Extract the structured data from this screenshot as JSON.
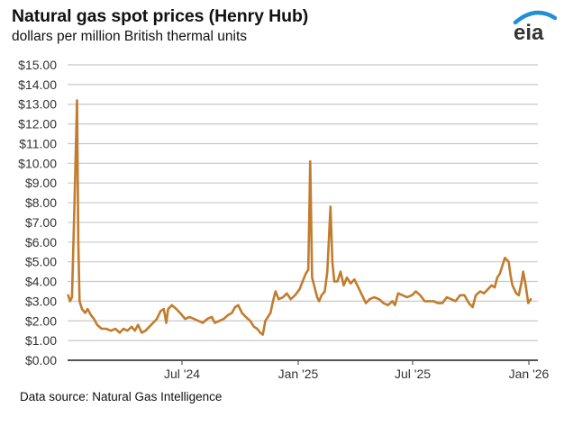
{
  "header": {
    "title": "Natural gas spot prices (Henry Hub)",
    "subtitle": "dollars per million British thermal units",
    "logo_text": "eia"
  },
  "footer": {
    "source": "Data source: Natural Gas Intelligence"
  },
  "colors": {
    "series": "#c27c2e",
    "grid": "#c8c8c8",
    "axis": "#555555",
    "logo_arc": "#1f8fd6",
    "logo_text": "#333333"
  },
  "chart_data": {
    "type": "line",
    "title": "Natural gas spot prices (Henry Hub)",
    "subtitle": "dollars per million British thermal units",
    "xlabel": "",
    "ylabel": "dollars per million British thermal units",
    "ylim": [
      0,
      15
    ],
    "yticks": [
      0,
      1,
      2,
      3,
      4,
      5,
      6,
      7,
      8,
      9,
      10,
      11,
      12,
      13,
      14,
      15
    ],
    "ytick_labels": [
      "$0.00",
      "$1.00",
      "$2.00",
      "$3.00",
      "$4.00",
      "$5.00",
      "$6.00",
      "$7.00",
      "$8.00",
      "$9.00",
      "$10.00",
      "$11.00",
      "$12.00",
      "$13.00",
      "$14.00",
      "$15.00"
    ],
    "xlim": [
      "2024-01-01",
      "2026-01-14"
    ],
    "xticks": [
      "2024-07-01",
      "2025-01-01",
      "2025-07-01",
      "2026-01-01"
    ],
    "xtick_labels": [
      "Jul '24",
      "Jan '25",
      "Jul '25",
      "Jan '26"
    ],
    "grid": true,
    "legend": null,
    "series": [
      {
        "name": "Henry Hub spot price",
        "points": [
          [
            "2024-01-02",
            3.3
          ],
          [
            "2024-01-05",
            3.0
          ],
          [
            "2024-01-08",
            3.2
          ],
          [
            "2024-01-12",
            8.0
          ],
          [
            "2024-01-16",
            13.2
          ],
          [
            "2024-01-18",
            6.0
          ],
          [
            "2024-01-20",
            3.0
          ],
          [
            "2024-01-24",
            2.6
          ],
          [
            "2024-01-29",
            2.4
          ],
          [
            "2024-02-02",
            2.6
          ],
          [
            "2024-02-07",
            2.3
          ],
          [
            "2024-02-12",
            2.1
          ],
          [
            "2024-02-17",
            1.8
          ],
          [
            "2024-02-24",
            1.6
          ],
          [
            "2024-03-02",
            1.6
          ],
          [
            "2024-03-10",
            1.5
          ],
          [
            "2024-03-17",
            1.6
          ],
          [
            "2024-03-24",
            1.4
          ],
          [
            "2024-03-30",
            1.6
          ],
          [
            "2024-04-05",
            1.5
          ],
          [
            "2024-04-12",
            1.7
          ],
          [
            "2024-04-17",
            1.5
          ],
          [
            "2024-04-22",
            1.8
          ],
          [
            "2024-04-28",
            1.4
          ],
          [
            "2024-05-04",
            1.5
          ],
          [
            "2024-05-10",
            1.7
          ],
          [
            "2024-05-16",
            1.9
          ],
          [
            "2024-05-22",
            2.1
          ],
          [
            "2024-05-28",
            2.5
          ],
          [
            "2024-06-02",
            2.6
          ],
          [
            "2024-06-06",
            1.9
          ],
          [
            "2024-06-09",
            2.6
          ],
          [
            "2024-06-15",
            2.8
          ],
          [
            "2024-06-22",
            2.6
          ],
          [
            "2024-06-28",
            2.4
          ],
          [
            "2024-07-06",
            2.1
          ],
          [
            "2024-07-13",
            2.2
          ],
          [
            "2024-07-20",
            2.1
          ],
          [
            "2024-07-27",
            2.0
          ],
          [
            "2024-08-03",
            1.9
          ],
          [
            "2024-08-10",
            2.1
          ],
          [
            "2024-08-17",
            2.2
          ],
          [
            "2024-08-22",
            1.9
          ],
          [
            "2024-08-29",
            2.0
          ],
          [
            "2024-09-05",
            2.1
          ],
          [
            "2024-09-12",
            2.3
          ],
          [
            "2024-09-18",
            2.4
          ],
          [
            "2024-09-23",
            2.7
          ],
          [
            "2024-09-28",
            2.8
          ],
          [
            "2024-10-04",
            2.4
          ],
          [
            "2024-10-10",
            2.2
          ],
          [
            "2024-10-17",
            2.0
          ],
          [
            "2024-10-23",
            1.7
          ],
          [
            "2024-10-28",
            1.6
          ],
          [
            "2024-11-02",
            1.4
          ],
          [
            "2024-11-06",
            1.3
          ],
          [
            "2024-11-10",
            2.0
          ],
          [
            "2024-11-14",
            2.2
          ],
          [
            "2024-11-18",
            2.4
          ],
          [
            "2024-11-22",
            3.0
          ],
          [
            "2024-11-26",
            3.5
          ],
          [
            "2024-12-01",
            3.1
          ],
          [
            "2024-12-08",
            3.2
          ],
          [
            "2024-12-14",
            3.4
          ],
          [
            "2024-12-20",
            3.1
          ],
          [
            "2024-12-27",
            3.3
          ],
          [
            "2025-01-03",
            3.6
          ],
          [
            "2025-01-08",
            4.0
          ],
          [
            "2025-01-13",
            4.4
          ],
          [
            "2025-01-17",
            4.6
          ],
          [
            "2025-01-20",
            10.1
          ],
          [
            "2025-01-23",
            4.2
          ],
          [
            "2025-01-27",
            3.7
          ],
          [
            "2025-01-31",
            3.2
          ],
          [
            "2025-02-03",
            3.0
          ],
          [
            "2025-02-07",
            3.3
          ],
          [
            "2025-02-12",
            3.5
          ],
          [
            "2025-02-16",
            4.5
          ],
          [
            "2025-02-21",
            7.8
          ],
          [
            "2025-02-24",
            5.0
          ],
          [
            "2025-02-27",
            4.0
          ],
          [
            "2025-03-04",
            4.0
          ],
          [
            "2025-03-09",
            4.5
          ],
          [
            "2025-03-14",
            3.8
          ],
          [
            "2025-03-19",
            4.2
          ],
          [
            "2025-03-25",
            3.9
          ],
          [
            "2025-03-31",
            4.1
          ],
          [
            "2025-04-06",
            3.7
          ],
          [
            "2025-04-12",
            3.3
          ],
          [
            "2025-04-18",
            2.9
          ],
          [
            "2025-04-24",
            3.1
          ],
          [
            "2025-05-01",
            3.2
          ],
          [
            "2025-05-09",
            3.1
          ],
          [
            "2025-05-16",
            2.9
          ],
          [
            "2025-05-23",
            2.8
          ],
          [
            "2025-05-30",
            3.0
          ],
          [
            "2025-06-03",
            2.8
          ],
          [
            "2025-06-08",
            3.4
          ],
          [
            "2025-06-15",
            3.3
          ],
          [
            "2025-06-22",
            3.2
          ],
          [
            "2025-06-30",
            3.3
          ],
          [
            "2025-07-06",
            3.5
          ],
          [
            "2025-07-13",
            3.3
          ],
          [
            "2025-07-20",
            3.0
          ],
          [
            "2025-08-03",
            3.0
          ],
          [
            "2025-08-10",
            2.9
          ],
          [
            "2025-08-17",
            2.9
          ],
          [
            "2025-08-24",
            3.2
          ],
          [
            "2025-08-31",
            3.1
          ],
          [
            "2025-09-07",
            3.0
          ],
          [
            "2025-09-14",
            3.3
          ],
          [
            "2025-09-21",
            3.3
          ],
          [
            "2025-09-28",
            2.9
          ],
          [
            "2025-10-04",
            2.7
          ],
          [
            "2025-10-09",
            3.3
          ],
          [
            "2025-10-16",
            3.5
          ],
          [
            "2025-10-22",
            3.4
          ],
          [
            "2025-10-28",
            3.6
          ],
          [
            "2025-11-03",
            3.8
          ],
          [
            "2025-11-08",
            3.7
          ],
          [
            "2025-11-12",
            4.2
          ],
          [
            "2025-11-16",
            4.4
          ],
          [
            "2025-11-20",
            4.8
          ],
          [
            "2025-11-24",
            5.2
          ],
          [
            "2025-11-27",
            5.1
          ],
          [
            "2025-11-30",
            5.0
          ],
          [
            "2025-12-03",
            4.3
          ],
          [
            "2025-12-06",
            3.8
          ],
          [
            "2025-12-09",
            3.6
          ],
          [
            "2025-12-12",
            3.4
          ],
          [
            "2025-12-16",
            3.3
          ],
          [
            "2025-12-20",
            3.9
          ],
          [
            "2025-12-23",
            4.5
          ],
          [
            "2025-12-27",
            3.8
          ],
          [
            "2025-12-31",
            2.9
          ],
          [
            "2026-01-04",
            3.1
          ]
        ]
      }
    ]
  }
}
